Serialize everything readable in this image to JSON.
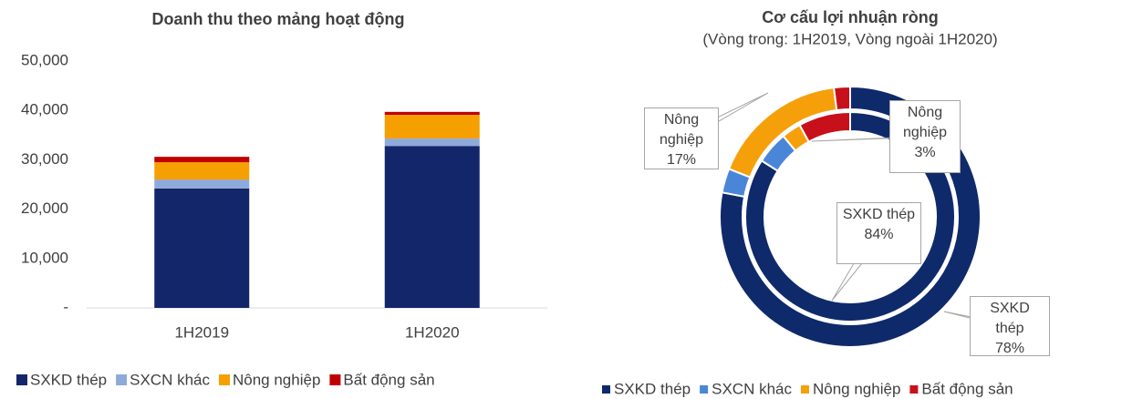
{
  "chart_data": [
    {
      "type": "bar",
      "stacked": true,
      "title": "Doanh thu theo mảng hoạt động",
      "categories": [
        "1H2019",
        "1H2020"
      ],
      "series": [
        {
          "name": "SXKD thép",
          "color": "#13266a",
          "values": [
            24200,
            32800
          ]
        },
        {
          "name": "SXCN khác",
          "color": "#8eaadb",
          "values": [
            1800,
            1500
          ]
        },
        {
          "name": "Nông nghiệp",
          "color": "#f59f00",
          "values": [
            3500,
            4800
          ]
        },
        {
          "name": "Bất động sản",
          "color": "#c00000",
          "values": [
            1100,
            600
          ]
        }
      ],
      "ylim": [
        0,
        50000
      ],
      "yticks": [
        {
          "value": 0,
          "label": "-"
        },
        {
          "value": 10000,
          "label": "10,000"
        },
        {
          "value": 20000,
          "label": "20,000"
        },
        {
          "value": 30000,
          "label": "30,000"
        },
        {
          "value": 40000,
          "label": "40,000"
        },
        {
          "value": 50000,
          "label": "50,000"
        }
      ],
      "legend": "bottom"
    },
    {
      "type": "pie",
      "donut": true,
      "title": "Cơ cấu lợi nhuận ròng",
      "subtitle": "(Vòng trong: 1H2019, Vòng ngoài 1H2020)",
      "categories": [
        "SXKD thép",
        "SXCN khác",
        "Nông nghiệp",
        "Bất động sản"
      ],
      "colors": [
        "#0f2a6b",
        "#4a86d8",
        "#f5a00a",
        "#c8101a"
      ],
      "rings": [
        {
          "values": [
            84,
            5,
            3,
            8
          ],
          "value_labels": [
            "84%",
            null,
            "3%",
            null
          ]
        },
        {
          "values": [
            78,
            3,
            17,
            2
          ],
          "value_labels": [
            "78%",
            null,
            "17%",
            null
          ]
        }
      ],
      "legend": "bottom"
    }
  ]
}
